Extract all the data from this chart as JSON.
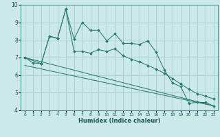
{
  "xlabel": "Humidex (Indice chaleur)",
  "bg_color": "#cce9e9",
  "grid_color": "#aacfcf",
  "line_color": "#2a7a6a",
  "xlim": [
    -0.5,
    23.5
  ],
  "ylim": [
    4,
    10
  ],
  "yticks": [
    4,
    5,
    6,
    7,
    8,
    9,
    10
  ],
  "xticks": [
    0,
    1,
    2,
    3,
    4,
    5,
    6,
    7,
    8,
    9,
    10,
    11,
    12,
    13,
    14,
    15,
    16,
    17,
    18,
    19,
    20,
    21,
    22,
    23
  ],
  "series0": {
    "x": [
      0,
      1,
      2,
      3,
      4,
      5,
      6,
      7,
      8,
      9,
      10,
      11,
      12,
      13,
      14,
      15,
      16,
      17,
      18,
      19,
      20,
      21,
      22,
      23
    ],
    "y": [
      7.0,
      6.7,
      6.65,
      8.2,
      8.1,
      9.75,
      8.05,
      9.0,
      8.55,
      8.55,
      7.95,
      8.35,
      7.8,
      7.8,
      7.75,
      7.95,
      7.3,
      6.3,
      5.55,
      5.35,
      4.4,
      4.45,
      4.45,
      4.25
    ]
  },
  "series1": {
    "x": [
      0,
      2,
      3,
      4,
      5,
      6,
      7,
      8,
      9,
      10,
      11,
      12,
      13,
      14,
      15,
      16,
      17,
      18,
      19,
      20,
      21,
      22,
      23
    ],
    "y": [
      7.0,
      6.65,
      8.2,
      8.1,
      9.75,
      7.35,
      7.35,
      7.25,
      7.45,
      7.35,
      7.5,
      7.1,
      6.9,
      6.75,
      6.55,
      6.35,
      6.1,
      5.8,
      5.5,
      5.2,
      4.95,
      4.8,
      4.65
    ]
  },
  "line2": {
    "x": [
      0,
      23
    ],
    "y": [
      7.0,
      4.25
    ]
  },
  "line3": {
    "x": [
      0,
      23
    ],
    "y": [
      6.55,
      4.25
    ]
  }
}
